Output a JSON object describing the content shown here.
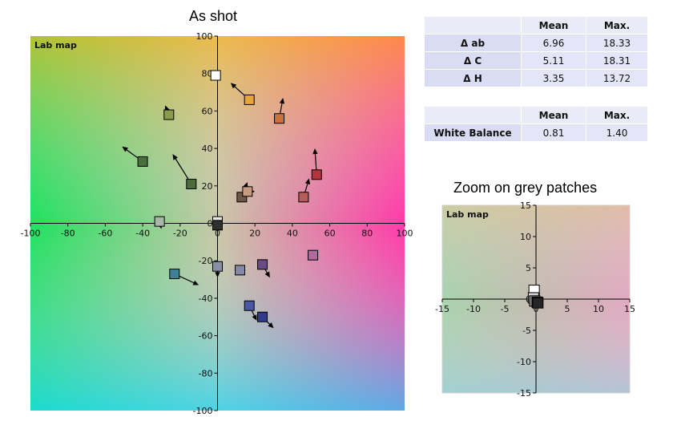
{
  "titles": {
    "main": "As shot",
    "zoom": "Zoom on grey patches"
  },
  "tables": {
    "errors": {
      "headers": [
        "",
        "Mean",
        "Max."
      ],
      "rows": [
        {
          "label": "Δ ab",
          "mean": "6.96",
          "max": "18.33"
        },
        {
          "label": "Δ C",
          "mean": "5.11",
          "max": "18.31"
        },
        {
          "label": "Δ H",
          "mean": "3.35",
          "max": "13.72"
        }
      ]
    },
    "white_balance": {
      "headers": [
        "",
        "Mean",
        "Max."
      ],
      "rows": [
        {
          "label": "White Balance",
          "mean": "0.81",
          "max": "1.40"
        }
      ]
    }
  },
  "chart_data": [
    {
      "type": "scatter",
      "title": "As shot",
      "panel_label": "Lab map",
      "xlim": [
        -100,
        100
      ],
      "ylim": [
        -100,
        100
      ],
      "xticks": [
        -100,
        -80,
        -60,
        -40,
        -20,
        0,
        20,
        40,
        60,
        80,
        100
      ],
      "yticks": [
        -100,
        -80,
        -60,
        -40,
        -20,
        0,
        20,
        40,
        60,
        80,
        100
      ],
      "grid": false,
      "background": "a*b* color plane",
      "points": [
        {
          "a": -1,
          "b": 79,
          "ta": -1,
          "tb": 79,
          "color": "#ffffff"
        },
        {
          "a": 17,
          "b": 66,
          "ta": 7,
          "tb": 75,
          "color": "#e8a53a"
        },
        {
          "a": 33,
          "b": 56,
          "ta": 35,
          "tb": 67,
          "color": "#c9733a"
        },
        {
          "a": -26,
          "b": 58,
          "ta": -28,
          "tb": 63,
          "color": "#8a9d4a"
        },
        {
          "a": -40,
          "b": 33,
          "ta": -51,
          "tb": 41,
          "color": "#49703a"
        },
        {
          "a": -14,
          "b": 21,
          "ta": -24,
          "tb": 37,
          "color": "#4d6b3b"
        },
        {
          "a": 53,
          "b": 26,
          "ta": 52,
          "tb": 40,
          "color": "#b3343a"
        },
        {
          "a": 46,
          "b": 14,
          "ta": 49,
          "tb": 24,
          "color": "#b85c5a"
        },
        {
          "a": 13,
          "b": 14,
          "ta": 16,
          "tb": 22,
          "color": "#6e5749"
        },
        {
          "a": 16,
          "b": 17,
          "ta": 20,
          "tb": 17,
          "color": "#c89a7e"
        },
        {
          "a": -31,
          "b": 1,
          "ta": -30,
          "tb": -3,
          "color": "#a8b7a8"
        },
        {
          "a": 0,
          "b": 1,
          "ta": 0,
          "tb": 1,
          "color": "#e6e6e6"
        },
        {
          "a": 0,
          "b": -1,
          "ta": 0,
          "tb": -1,
          "color": "#2f2f2f"
        },
        {
          "a": -23,
          "b": -27,
          "ta": -10,
          "tb": -33,
          "color": "#3e8096"
        },
        {
          "a": 0,
          "b": -23,
          "ta": 0,
          "tb": -29,
          "color": "#8a8fa8"
        },
        {
          "a": 12,
          "b": -25,
          "ta": 12,
          "tb": -25,
          "color": "#8688a8"
        },
        {
          "a": 24,
          "b": -22,
          "ta": 28,
          "tb": -29,
          "color": "#6a4a86"
        },
        {
          "a": 51,
          "b": -17,
          "ta": 51,
          "tb": -17,
          "color": "#b06aa0"
        },
        {
          "a": 17,
          "b": -44,
          "ta": 21,
          "tb": -52,
          "color": "#4a57a3"
        },
        {
          "a": 24,
          "b": -50,
          "ta": 30,
          "tb": -56,
          "color": "#2f3c8c"
        }
      ]
    },
    {
      "type": "scatter",
      "title": "Zoom on grey patches",
      "panel_label": "Lab map",
      "xlim": [
        -15,
        15
      ],
      "ylim": [
        -15,
        15
      ],
      "xticks": [
        -15,
        -10,
        -5,
        0,
        5,
        10,
        15
      ],
      "yticks": [
        -15,
        -10,
        -5,
        0,
        5,
        10,
        15
      ],
      "grid": false,
      "background": "a*b* color plane",
      "points": [
        {
          "a": -0.3,
          "b": 1.4,
          "ta": -0.3,
          "tb": 1.4,
          "color": "#ffffff"
        },
        {
          "a": -0.4,
          "b": 0.2,
          "ta": -1.4,
          "tb": -0.3,
          "color": "#d0d0d0"
        },
        {
          "a": -0.2,
          "b": -0.3,
          "ta": -1.0,
          "tb": -0.6,
          "color": "#8a8a8a"
        },
        {
          "a": 0.2,
          "b": -0.5,
          "ta": -0.6,
          "tb": -0.8,
          "color": "#555555"
        },
        {
          "a": 0.3,
          "b": -0.6,
          "ta": 0.3,
          "tb": -0.6,
          "color": "#262626"
        }
      ]
    }
  ]
}
